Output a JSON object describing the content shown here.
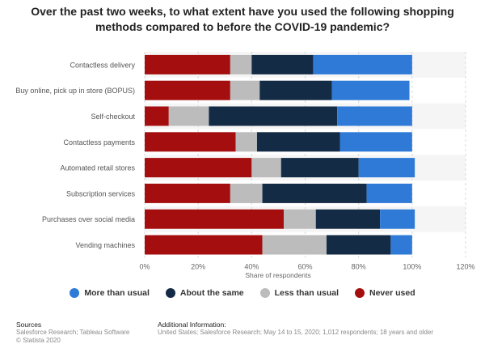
{
  "chart_data": {
    "type": "bar",
    "orientation": "horizontal",
    "stacked": true,
    "title": "Over the past two weeks, to what extent have you used the following shopping methods compared to before the COVID-19 pandemic?",
    "xlabel": "Share of respondents",
    "xlim": [
      0,
      120
    ],
    "xticks": [
      "0%",
      "20%",
      "40%",
      "60%",
      "80%",
      "100%",
      "120%"
    ],
    "grid": true,
    "legend_position": "bottom",
    "categories": [
      "Contactless delivery",
      "Buy online, pick up in store (BOPUS)",
      "Self-checkout",
      "Contactless payments",
      "Automated retail stores",
      "Subscription services",
      "Purchases over social media",
      "Vending machines"
    ],
    "series": [
      {
        "name": "Never used",
        "color": "#a50e0e",
        "values": [
          32,
          32,
          9,
          34,
          40,
          32,
          52,
          44
        ]
      },
      {
        "name": "Less than usual",
        "color": "#bcbcbc",
        "values": [
          8,
          11,
          15,
          8,
          11,
          12,
          12,
          24
        ]
      },
      {
        "name": "About the same",
        "color": "#142b45",
        "values": [
          23,
          27,
          48,
          31,
          29,
          39,
          24,
          24
        ]
      },
      {
        "name": "More than usual",
        "color": "#2e7ad6",
        "values": [
          37,
          29,
          28,
          27,
          21,
          17,
          13,
          8
        ]
      }
    ],
    "legend_order": [
      "More than usual",
      "About the same",
      "Less than usual",
      "Never used"
    ]
  },
  "footer": {
    "sources_heading": "Sources",
    "sources_line1": "Salesforce Research; Tableau Software",
    "sources_line2": "© Statista 2020",
    "info_heading": "Additional Information:",
    "info_text": "United States; Salesforce Research; May 14 to 15, 2020; 1,012 respondents; 18 years and older"
  }
}
